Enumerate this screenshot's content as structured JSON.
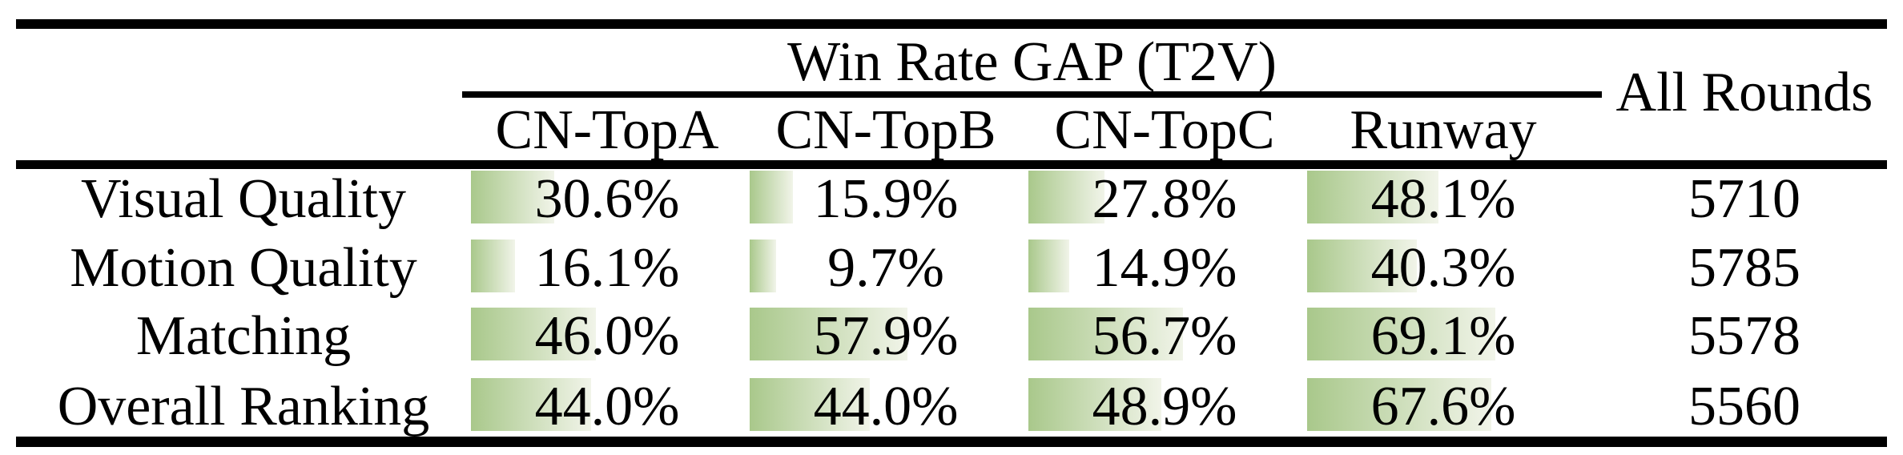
{
  "title": "Win Rate GAP (T2V)",
  "all_rounds_label": "All Rounds",
  "columns": [
    "CN-TopA",
    "CN-TopB",
    "CN-TopC",
    "Runway"
  ],
  "rows": [
    {
      "label": "Visual Quality",
      "cells": [
        {
          "text": "30.6%",
          "value": 30.6
        },
        {
          "text": "15.9%",
          "value": 15.9
        },
        {
          "text": "27.8%",
          "value": 27.8
        },
        {
          "text": "48.1%",
          "value": 48.1
        }
      ],
      "all_rounds": "5710"
    },
    {
      "label": "Motion Quality",
      "cells": [
        {
          "text": "16.1%",
          "value": 16.1
        },
        {
          "text": "9.7%",
          "value": 9.7
        },
        {
          "text": "14.9%",
          "value": 14.9
        },
        {
          "text": "40.3%",
          "value": 40.3
        }
      ],
      "all_rounds": "5785"
    },
    {
      "label": "Matching",
      "cells": [
        {
          "text": "46.0%",
          "value": 46.0
        },
        {
          "text": "57.9%",
          "value": 57.9
        },
        {
          "text": "56.7%",
          "value": 56.7
        },
        {
          "text": "69.1%",
          "value": 69.1
        }
      ],
      "all_rounds": "5578"
    },
    {
      "label": "Overall Ranking",
      "cells": [
        {
          "text": "44.0%",
          "value": 44.0
        },
        {
          "text": "44.0%",
          "value": 44.0
        },
        {
          "text": "48.9%",
          "value": 48.9
        },
        {
          "text": "67.6%",
          "value": 67.6
        }
      ],
      "all_rounds": "5560"
    }
  ],
  "colors": {
    "bar_gradient_start": "#a9c88b",
    "bar_gradient_end": "#f1f4e9",
    "rule_color": "#000000",
    "text": "#000000",
    "background": "#ffffff"
  },
  "chart_data": {
    "type": "table",
    "title": "Win Rate GAP (T2V)",
    "columns": [
      "CN-TopA",
      "CN-TopB",
      "CN-TopC",
      "Runway",
      "All Rounds"
    ],
    "rows": [
      {
        "label": "Visual Quality",
        "win_rate_gap_percent": [
          30.6,
          15.9,
          27.8,
          48.1
        ],
        "all_rounds": 5710
      },
      {
        "label": "Motion Quality",
        "win_rate_gap_percent": [
          16.1,
          9.7,
          14.9,
          40.3
        ],
        "all_rounds": 5785
      },
      {
        "label": "Matching",
        "win_rate_gap_percent": [
          46.0,
          57.9,
          56.7,
          69.1
        ],
        "all_rounds": 5578
      },
      {
        "label": "Overall Ranking",
        "win_rate_gap_percent": [
          44.0,
          44.0,
          48.9,
          67.6
        ],
        "all_rounds": 5560
      }
    ],
    "layout_hints": "left-aligned green gradient data bars behind each percentage; bar width proportional to value, 100% equals full cell width"
  }
}
